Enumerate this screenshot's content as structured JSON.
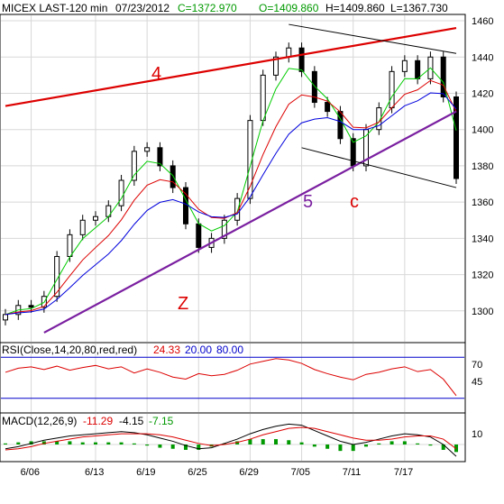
{
  "header": {
    "symbol": "MICEX LAST-120 min",
    "date": "07/23/2012",
    "close": "C=1372.970",
    "open": "O=1409.860",
    "high": "H=1409.860",
    "low": "L=1367.730"
  },
  "colors": {
    "price": "#000000",
    "ma_fast": "#00cc00",
    "ma_mid": "#dd0000",
    "ma_slow": "#0000dd",
    "trend_red": "#dd0000",
    "trend_purple": "#7a1fa0",
    "channel": "#000000",
    "annot_red": "#dd0000",
    "annot_purple": "#7a1fa0",
    "ind_blue": "#0000cc",
    "grid": "#d8d8d8",
    "rsi_line": "#dd0000",
    "macd_line": "#000000",
    "signal_line": "#dd0000",
    "hist": "#009900"
  },
  "rsi_header": {
    "label": "RSI(Close,14,20,80,red,red)",
    "value": "24.33",
    "lower": "20.00",
    "upper": "80.00"
  },
  "macd_header": {
    "label": "MACD(12,26,9)",
    "v1": "-11.29",
    "v2": "-4.15",
    "v3": "-7.15"
  },
  "annotations": {
    "four": "4",
    "five": "5",
    "z": "Z",
    "c": "c"
  },
  "chart_data": [
    {
      "type": "candlestick",
      "title": "MICEX LAST-120 min",
      "ylim": [
        1283,
        1463
      ],
      "y_ticks": [
        "1300",
        "1320",
        "1340",
        "1360",
        "1380",
        "1400",
        "1420",
        "1440",
        "1460"
      ],
      "x_ticks": [
        "6/06",
        "6/13",
        "6/19",
        "6/25",
        "6/29",
        "7/05",
        "7/11",
        "7/17"
      ],
      "close_series": [
        {
          "x": "6/04",
          "y": 1298
        },
        {
          "x": "6/05",
          "y": 1303
        },
        {
          "x": "6/06",
          "y": 1302
        },
        {
          "x": "6/07",
          "y": 1308
        },
        {
          "x": "6/08",
          "y": 1330
        },
        {
          "x": "6/11",
          "y": 1342
        },
        {
          "x": "6/12",
          "y": 1350
        },
        {
          "x": "6/13",
          "y": 1352
        },
        {
          "x": "6/14",
          "y": 1358
        },
        {
          "x": "6/15",
          "y": 1372
        },
        {
          "x": "6/18",
          "y": 1388
        },
        {
          "x": "6/19",
          "y": 1390
        },
        {
          "x": "6/20",
          "y": 1380
        },
        {
          "x": "6/21",
          "y": 1368
        },
        {
          "x": "6/22",
          "y": 1348
        },
        {
          "x": "6/25",
          "y": 1335
        },
        {
          "x": "6/26",
          "y": 1340
        },
        {
          "x": "6/27",
          "y": 1350
        },
        {
          "x": "6/28",
          "y": 1362
        },
        {
          "x": "6/29",
          "y": 1405
        },
        {
          "x": "7/02",
          "y": 1430
        },
        {
          "x": "7/03",
          "y": 1440
        },
        {
          "x": "7/04",
          "y": 1445
        },
        {
          "x": "7/05",
          "y": 1432
        },
        {
          "x": "7/06",
          "y": 1415
        },
        {
          "x": "7/09",
          "y": 1410
        },
        {
          "x": "7/10",
          "y": 1395
        },
        {
          "x": "7/11",
          "y": 1380
        },
        {
          "x": "7/12",
          "y": 1400
        },
        {
          "x": "7/13",
          "y": 1412
        },
        {
          "x": "7/16",
          "y": 1432
        },
        {
          "x": "7/17",
          "y": 1438
        },
        {
          "x": "7/18",
          "y": 1428
        },
        {
          "x": "7/19",
          "y": 1440
        },
        {
          "x": "7/20",
          "y": 1418
        },
        {
          "x": "7/23",
          "y": 1373
        }
      ],
      "trendlines": [
        {
          "name": "4",
          "color": "red",
          "from": {
            "x": "6/04",
            "y": 1413
          },
          "to": {
            "x": "7/23",
            "y": 1456
          }
        },
        {
          "name": "5",
          "color": "purple",
          "from": {
            "x": "6/07",
            "y": 1288
          },
          "to": {
            "x": "7/23",
            "y": 1410
          }
        },
        {
          "name": "channel-upper",
          "color": "black",
          "from": {
            "x": "7/04",
            "y": 1458
          },
          "to": {
            "x": "7/23",
            "y": 1442
          }
        },
        {
          "name": "channel-lower",
          "color": "black",
          "from": {
            "x": "7/05",
            "y": 1390
          },
          "to": {
            "x": "7/23",
            "y": 1368
          }
        }
      ],
      "labels": [
        "4",
        "5",
        "Z",
        "c"
      ]
    },
    {
      "type": "line",
      "title": "RSI(Close,14,20,80,red,red)",
      "ylim": [
        0,
        100
      ],
      "y_ticks": [
        "70",
        "45"
      ],
      "levels": [
        20,
        80
      ],
      "series": [
        {
          "name": "RSI",
          "values": [
            58,
            64,
            66,
            62,
            67,
            61,
            65,
            68,
            63,
            66,
            57,
            63,
            58,
            51,
            48,
            56,
            53,
            55,
            61,
            70,
            74,
            78,
            76,
            71,
            62,
            56,
            51,
            47,
            55,
            58,
            63,
            66,
            59,
            62,
            48,
            24
          ]
        }
      ]
    },
    {
      "type": "line",
      "title": "MACD(12,26,9)",
      "y_ticks": [
        "10"
      ],
      "series": [
        {
          "name": "MACD",
          "values": [
            -4,
            -2,
            1,
            4,
            6,
            8,
            9,
            10,
            11,
            12,
            11,
            9,
            6,
            3,
            -1,
            -4,
            -3,
            1,
            5,
            10,
            14,
            17,
            19,
            18,
            13,
            8,
            3,
            0,
            2,
            5,
            8,
            10,
            9,
            7,
            0,
            -11
          ]
        },
        {
          "name": "Signal",
          "values": [
            -5,
            -4,
            -2,
            1,
            3,
            5,
            7,
            8,
            9,
            10,
            10,
            10,
            9,
            7,
            4,
            1,
            -1,
            0,
            2,
            5,
            9,
            12,
            15,
            16,
            15,
            12,
            9,
            6,
            4,
            4,
            5,
            7,
            8,
            8,
            5,
            -4
          ]
        }
      ]
    }
  ]
}
